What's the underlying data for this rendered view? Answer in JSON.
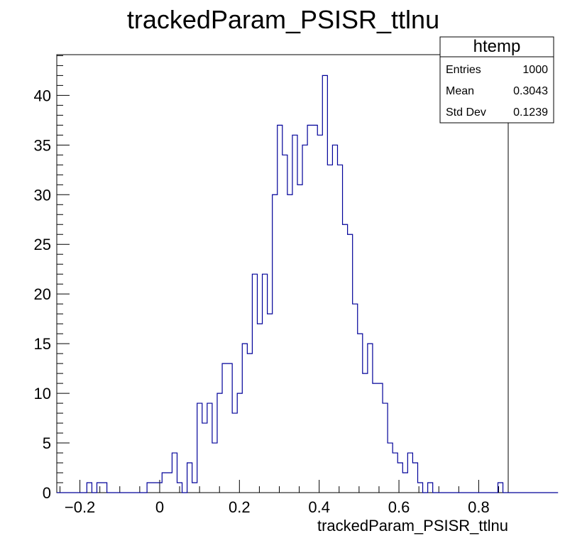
{
  "chart_data": {
    "type": "bar",
    "title": "trackedParam_PSISR_ttlnu",
    "xlabel": "trackedParam_PSISR_ttlnu",
    "ylabel": "",
    "xlim": [
      -0.258,
      0.874
    ],
    "ylim": [
      0,
      44.1
    ],
    "grid": false,
    "line_color": "#000099",
    "bin_width": 0.01257,
    "x_start": -0.258,
    "x_ticks": [
      "−0.2",
      "0",
      "0.2",
      "0.4",
      "0.6",
      "0.8"
    ],
    "x_tick_values": [
      -0.2,
      0,
      0.2,
      0.4,
      0.6,
      0.8
    ],
    "y_ticks": [
      "0",
      "5",
      "10",
      "15",
      "20",
      "25",
      "30",
      "35",
      "40"
    ],
    "y_tick_values": [
      0,
      5,
      10,
      15,
      20,
      25,
      30,
      35,
      40
    ],
    "values": [
      0,
      0,
      0,
      0,
      0,
      0,
      1,
      0,
      1,
      1,
      0,
      0,
      0,
      0,
      0,
      0,
      0,
      0,
      1,
      1,
      1,
      2,
      2,
      4,
      1,
      0,
      3,
      1,
      9,
      7,
      9,
      5,
      10,
      13,
      13,
      8,
      10,
      15,
      14,
      22,
      17,
      22,
      18,
      30,
      37,
      34,
      30,
      36,
      31,
      35,
      37,
      37,
      36,
      42,
      33,
      35,
      33,
      27,
      26,
      19,
      16,
      12,
      15,
      11,
      11,
      9,
      5,
      4,
      3,
      2,
      4,
      3,
      1,
      0,
      1,
      0,
      0,
      0,
      0,
      0,
      0,
      0,
      0,
      0,
      0,
      0,
      0,
      0,
      1,
      0,
      0,
      0,
      0,
      0,
      0,
      0,
      0,
      0,
      0,
      0
    ]
  },
  "stats": {
    "title": "htemp",
    "rows": [
      {
        "label": "Entries",
        "value": "1000"
      },
      {
        "label": "Mean",
        "value": "0.3043"
      },
      {
        "label": "Std Dev",
        "value": "0.1239"
      }
    ]
  }
}
